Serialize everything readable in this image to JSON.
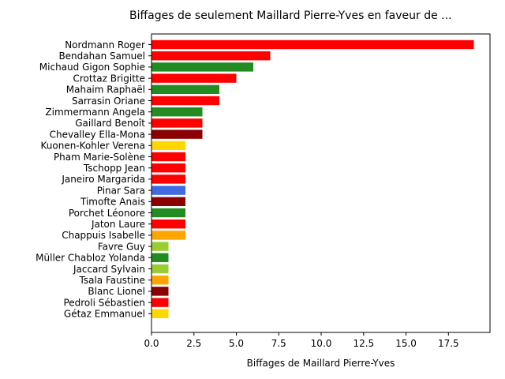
{
  "chart_data": {
    "type": "bar",
    "orientation": "horizontal",
    "title": "Biffages de seulement Maillard Pierre-Yves en faveur de ...",
    "xlabel": "Biffages de Maillard Pierre-Yves",
    "ylabel": "",
    "xlim": [
      0,
      19.95
    ],
    "xticks": [
      0.0,
      2.5,
      5.0,
      7.5,
      10.0,
      12.5,
      15.0,
      17.5
    ],
    "xtick_labels": [
      "0.0",
      "2.5",
      "5.0",
      "7.5",
      "10.0",
      "12.5",
      "15.0",
      "17.5"
    ],
    "grid": false,
    "legend": "none",
    "categories": [
      "Nordmann Roger",
      "Bendahan Samuel",
      "Michaud Gigon Sophie",
      "Crottaz Brigitte",
      "Mahaim Raphaël",
      "Sarrasin Oriane",
      "Zimmermann Angela",
      "Gaillard Benoît",
      "Chevalley Ella-Mona",
      "Kuonen-Kohler Verena",
      "Pham Marie-Solène",
      "Tschopp Jean",
      "Janeiro Margarida",
      "Pinar Sara",
      "Timofte Anais",
      "Porchet Léonore",
      "Jaton Laure",
      "Chappuis Isabelle",
      "Favre Guy",
      "Müller Chabloz Yolanda",
      "Jaccard Sylvain",
      "Tsala Faustine",
      "Blanc Lionel",
      "Pedroli Sébastien",
      "Gétaz Emmanuel"
    ],
    "values": [
      19,
      7,
      6,
      5,
      4,
      4,
      3,
      3,
      3,
      2,
      2,
      2,
      2,
      2,
      2,
      2,
      2,
      2,
      1,
      1,
      1,
      1,
      1,
      1,
      1
    ],
    "colors": [
      "#ff0000",
      "#ff0000",
      "#228b22",
      "#ff0000",
      "#228b22",
      "#ff0000",
      "#228b22",
      "#ff0000",
      "#8b0000",
      "#ffd700",
      "#ff0000",
      "#ff0000",
      "#ff0000",
      "#4169e1",
      "#8b0000",
      "#228b22",
      "#ff0000",
      "#ffa500",
      "#9acd32",
      "#228b22",
      "#9acd32",
      "#ffa500",
      "#8b0000",
      "#ff0000",
      "#ffd700"
    ]
  }
}
